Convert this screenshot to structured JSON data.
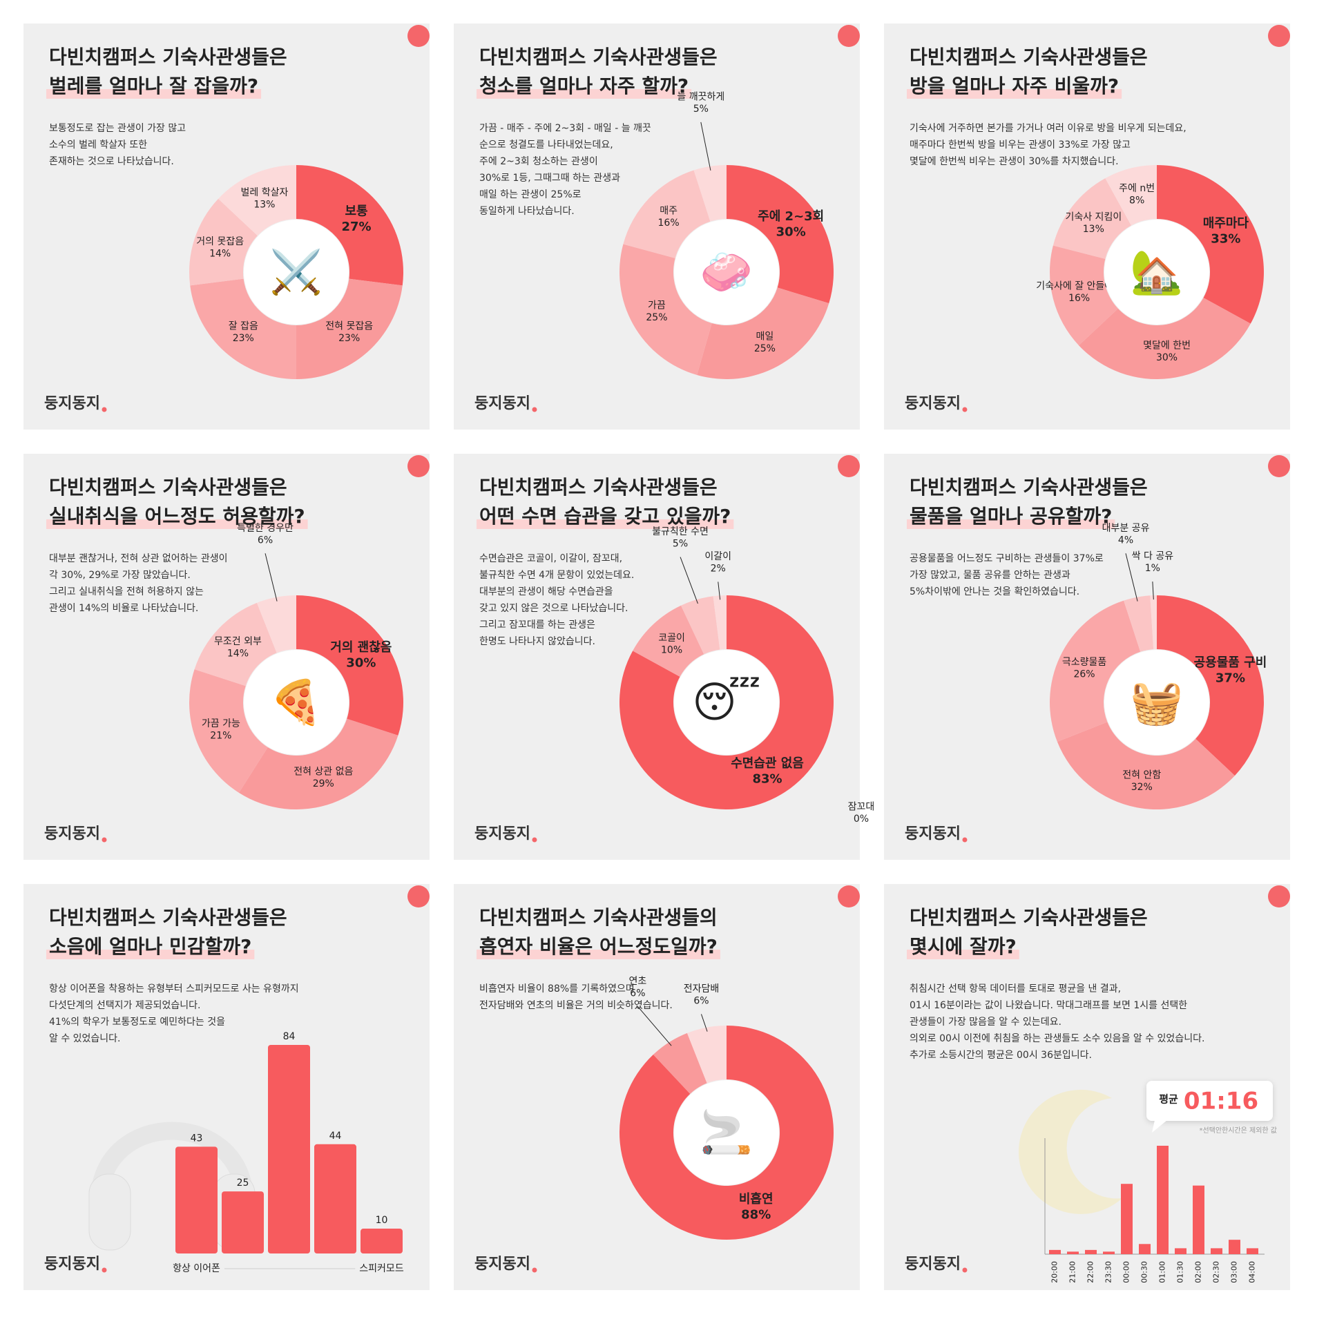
{
  "brand": "둥지동지",
  "chart_data": [
    {
      "type": "pie",
      "title": [
        "다빈치캠퍼스 기숙사관생들은",
        "벌레를 얼마나 잘 잡을까?"
      ],
      "description": [
        "보통정도로 잡는 관생이 가장 많고",
        "소수의 벌레 학살자 또한",
        "존재하는 것으로 나타났습니다."
      ],
      "icon": "⚔️",
      "categories": [
        "보통",
        "전혀 못잡음",
        "잘 잡음",
        "거의 못잡음",
        "벌레 학살자"
      ],
      "values": [
        27,
        23,
        23,
        14,
        13
      ],
      "value_labels": [
        "27%",
        "23%",
        "23%",
        "14%",
        "13%"
      ],
      "colors": [
        "#f75b5e",
        "#f99a9b",
        "#faa7a8",
        "#fbc5c5",
        "#fcdada"
      ]
    },
    {
      "type": "pie",
      "title": [
        "다빈치캠퍼스 기숙사관생들은",
        "청소를 얼마나 자주 할까?"
      ],
      "description": [
        "가끔 - 매주 - 주에 2~3회 - 매일 - 늘 깨끗",
        "순으로 청결도를 나타내었는데요,",
        "주에 2~3회 청소하는 관생이",
        "30%로 1등, 그때그때 하는 관생과",
        "매일 하는 관생이 25%로",
        "동일하게 나타났습니다."
      ],
      "icon": "🧼",
      "categories": [
        "주에 2~3회",
        "매일",
        "가끔",
        "매주",
        "늘 깨끗하게"
      ],
      "values": [
        30,
        25,
        25,
        16,
        5
      ],
      "value_labels": [
        "30%",
        "25%",
        "25%",
        "16%",
        "5%"
      ],
      "colors": [
        "#f75b5e",
        "#f99a9b",
        "#faa7a8",
        "#fbc5c5",
        "#fcdada"
      ]
    },
    {
      "type": "pie",
      "title": [
        "다빈치캠퍼스 기숙사관생들은",
        "방을 얼마나 자주 비울까?"
      ],
      "description": [
        "기숙사에 거주하면 본가를 가거나 여러 이유로 방을 비우게 되는데요,",
        "매주마다 한번씩 방을 비우는 관생이 33%로 가장 많고",
        "몇달에 한번씩 비우는 관생이 30%를 차지했습니다."
      ],
      "icon": "🏡",
      "categories": [
        "매주마다",
        "몇달에 한번",
        "기숙사에 잘 안들어옴",
        "기숙사 지킴이",
        "주에 n번"
      ],
      "values": [
        33,
        30,
        16,
        13,
        8
      ],
      "value_labels": [
        "33%",
        "30%",
        "16%",
        "13%",
        "8%"
      ],
      "colors": [
        "#f75b5e",
        "#f99a9b",
        "#faa7a8",
        "#fbc5c5",
        "#fcdada"
      ]
    },
    {
      "type": "pie",
      "title": [
        "다빈치캠퍼스 기숙사관생들은",
        "실내취식을 어느정도 허용할까?"
      ],
      "description": [
        "대부분 괜찮거나, 전혀 상관 없어하는 관생이",
        "각 30%, 29%로 가장 많았습니다.",
        "그리고 실내취식을 전혀 허용하지 않는",
        "관생이 14%의 비율로 나타났습니다."
      ],
      "icon": "🍕",
      "categories": [
        "거의 괜찮음",
        "전혀 상관 없음",
        "가끔 가능",
        "무조건 외부",
        "특별한 경우만"
      ],
      "values": [
        30,
        29,
        21,
        14,
        6
      ],
      "value_labels": [
        "30%",
        "29%",
        "21%",
        "14%",
        "6%"
      ],
      "colors": [
        "#f75b5e",
        "#f99a9b",
        "#faa7a8",
        "#fbc5c5",
        "#fcdada"
      ]
    },
    {
      "type": "pie",
      "title": [
        "다빈치캠퍼스 기숙사관생들은",
        "어떤 수면 습관을 갖고 있을까?"
      ],
      "description": [
        "수면습관은 코골이, 이갈이, 잠꼬대,",
        "불규칙한 수면 4개 문항이 있었는데요.",
        "대부분의 관생이 해당 수면습관을",
        "갖고 있지 않은 것으로 나타났습니다.",
        "그리고 잠꼬대를 하는 관생은",
        "한명도 나타나지 않았습니다."
      ],
      "icon": "😴",
      "categories": [
        "수면습관 없음",
        "코골이",
        "불규칙한 수면",
        "이갈이",
        "잠꼬대"
      ],
      "values": [
        83,
        10,
        5,
        2,
        0
      ],
      "value_labels": [
        "83%",
        "10%",
        "5%",
        "2%",
        "0%"
      ],
      "colors": [
        "#f75b5e",
        "#faa7a8",
        "#fbc5c5",
        "#fcdada",
        "#fde6e6"
      ]
    },
    {
      "type": "pie",
      "title": [
        "다빈치캠퍼스 기숙사관생들은",
        "물품을 얼마나 공유할까?"
      ],
      "description": [
        "공용물품을 어느정도 구비하는 관생들이 37%로",
        "가장 많았고, 물품 공유를 안하는 관생과",
        "5%차이밖에 안나는 것을 확인하였습니다."
      ],
      "icon": "🧺",
      "categories": [
        "공용물품 구비",
        "전혀 안함",
        "극소량물품",
        "대부분 공유",
        "싹 다 공유"
      ],
      "values": [
        37,
        32,
        26,
        4,
        1
      ],
      "value_labels": [
        "37%",
        "32%",
        "26%",
        "4%",
        "1%"
      ],
      "colors": [
        "#f75b5e",
        "#f99a9b",
        "#faa7a8",
        "#fbc5c5",
        "#fcdada"
      ]
    },
    {
      "type": "bar",
      "title": [
        "다빈치캠퍼스 기숙사관생들은",
        "소음에 얼마나 민감할까?"
      ],
      "description": [
        "항상 이어폰을 착용하는 유형부터 스피커모드로 사는 유형까지",
        "다섯단계의 선택지가 제공되었습니다.",
        "41%의 학우가 보통정도로 예민하다는 것을",
        "알 수 있었습니다."
      ],
      "categories": [
        "항상 이어폰",
        null,
        null,
        null,
        "스피커모드"
      ],
      "values": [
        43,
        25,
        84,
        44,
        10
      ],
      "color": "#f75b5e",
      "data_labels": true
    },
    {
      "type": "pie",
      "title": [
        "다빈치캠퍼스 기숙사관생들의",
        "흡연자 비율은 어느정도일까?"
      ],
      "description": [
        "비흡연자 비율이 88%를 기록하였으며",
        "전자담배와 연초의 비율은 거의 비슷하였습니다."
      ],
      "icon": "🚬",
      "categories": [
        "비흡연",
        "연초",
        "전자담배"
      ],
      "values": [
        88,
        6,
        6
      ],
      "value_labels": [
        "88%",
        "6%",
        "6%"
      ],
      "colors": [
        "#f75b5e",
        "#f99a9b",
        "#fcdada"
      ]
    },
    {
      "type": "bar",
      "title": [
        "다빈치캠퍼스 기숙사관생들은",
        "몇시에 잘까?"
      ],
      "description": [
        "취침시간 선택 항목 데이터를 토대로 평균을 낸 결과,",
        "01시 16분이라는 값이 나왔습니다. 막대그래프를 보면 1시를 선택한",
        "관생들이 가장 많음을 알 수 있는데요.",
        "의외로 00시 이전에 취침을 하는 관생들도 소수 있음을 알 수 있었습니다.",
        "추가로 소등시간의 평균은 00시 36분입니다."
      ],
      "categories": [
        "20:00",
        "21:00",
        "22:00",
        "23:30",
        "00:00",
        "00:30",
        "01:00",
        "01:30",
        "02:00",
        "02:30",
        "03:00",
        "04:00"
      ],
      "values": [
        5,
        3,
        5,
        3,
        83,
        12,
        128,
        7,
        81,
        7,
        17,
        7
      ],
      "color": "#f75b5e",
      "axis_lines": true,
      "callout": {
        "label": "평균",
        "value": "01:16"
      },
      "note": "*선택안한시간은 제외한 값"
    }
  ]
}
